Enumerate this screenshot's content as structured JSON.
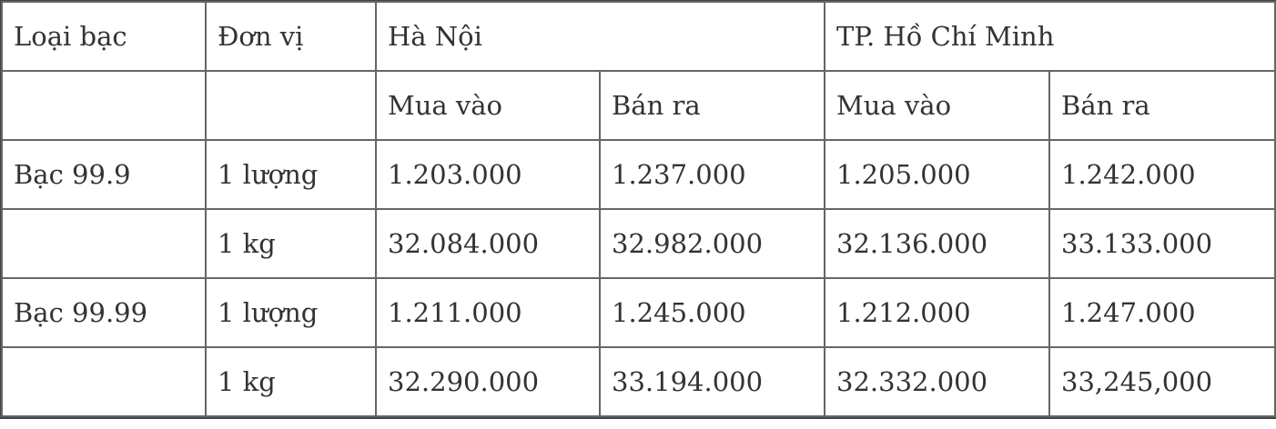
{
  "header": {
    "col_type": "Loại bạc",
    "col_unit": "Đơn vị",
    "city_hn": "Hà Nội",
    "city_hcm": "TP. Hồ Chí Minh",
    "buy": "Mua vào",
    "sell": "Bán ra"
  },
  "rows": [
    {
      "type": "Bạc 99.9",
      "unit": "1 lượng",
      "hn_buy": "1.203.000",
      "hn_sell": "1.237.000",
      "hcm_buy": "1.205.000",
      "hcm_sell": "1.242.000"
    },
    {
      "type": "",
      "unit": "1 kg",
      "hn_buy": "32.084.000",
      "hn_sell": "32.982.000",
      "hcm_buy": "32.136.000",
      "hcm_sell": "33.133.000"
    },
    {
      "type": "Bạc 99.99",
      "unit": "1 lượng",
      "hn_buy": "1.211.000",
      "hn_sell": "1.245.000",
      "hcm_buy": "1.212.000",
      "hcm_sell": "1.247.000"
    },
    {
      "type": "",
      "unit": "1 kg",
      "hn_buy": "32.290.000",
      "hn_sell": "33.194.000",
      "hcm_buy": "32.332.000",
      "hcm_sell": "33,245,000"
    }
  ]
}
